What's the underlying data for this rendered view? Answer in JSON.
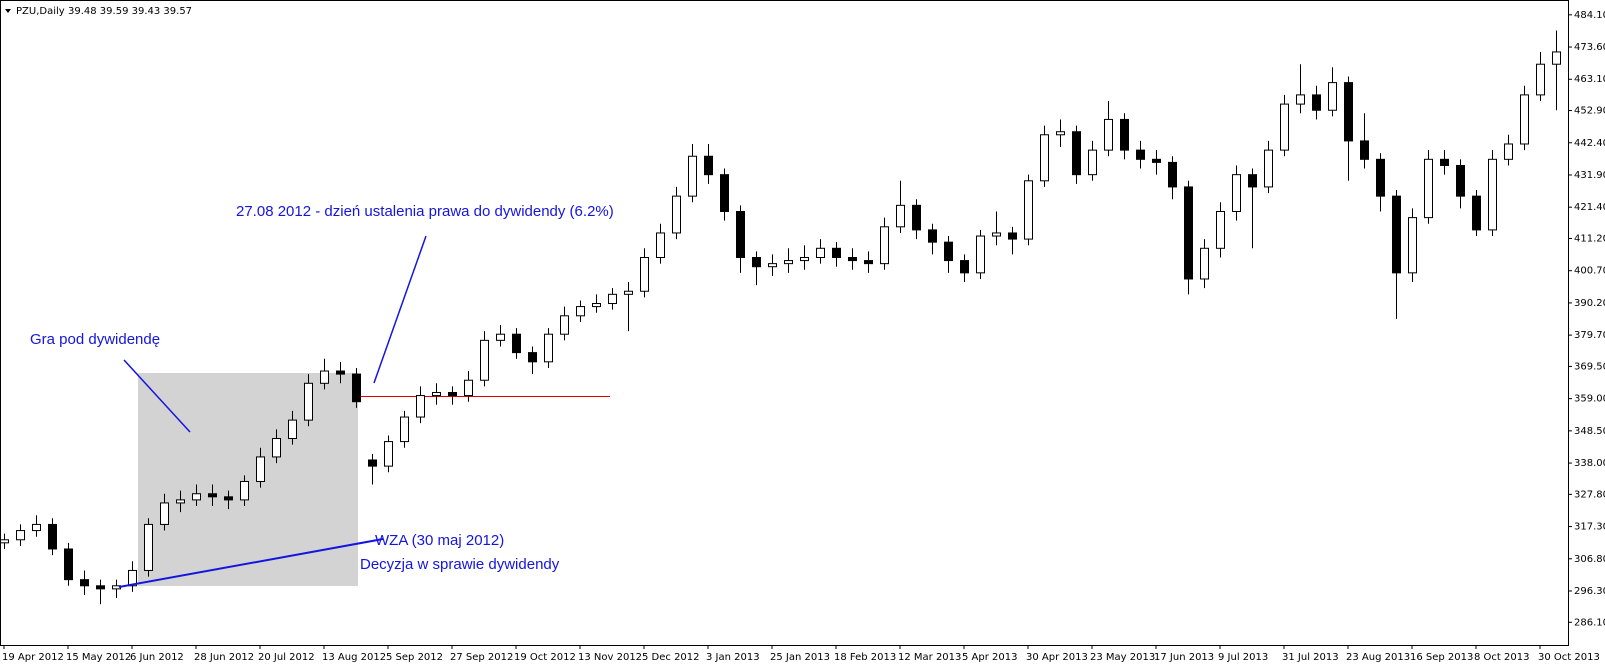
{
  "chart_data": {
    "type": "candlestick",
    "title": "PZU,Daily",
    "quote": "39.48 39.59 39.43 39.57",
    "annotations": [
      "27.08 2012 - dzień ustalenia prawa do dywidendy (6.2%)",
      "Gra pod dywidendę",
      "WZA (30 maj 2012)",
      "Decyzja w sprawie dywidendy"
    ],
    "categories": [
      "19 Apr 2012",
      null,
      null,
      null,
      "15 May 2012",
      null,
      null,
      null,
      "6 Jun 2012",
      null,
      null,
      null,
      "28 Jun 2012",
      null,
      null,
      null,
      "20 Jul 2012",
      null,
      null,
      null,
      "13 Aug 2012",
      null,
      null,
      null,
      "5 Sep 2012",
      null,
      null,
      null,
      "27 Sep 2012",
      null,
      null,
      null,
      "19 Oct 2012",
      null,
      null,
      null,
      "13 Nov 2012",
      null,
      null,
      null,
      "5 Dec 2012",
      null,
      null,
      null,
      "3 Jan 2013",
      null,
      null,
      null,
      "25 Jan 2013",
      null,
      null,
      null,
      "18 Feb 2013",
      null,
      null,
      null,
      "12 Mar 2013",
      null,
      null,
      null,
      "5 Apr 2013",
      null,
      null,
      null,
      "30 Apr 2013",
      null,
      null,
      null,
      "23 May 2013",
      null,
      null,
      null,
      "17 Jun 2013",
      null,
      null,
      null,
      "9 Jul 2013",
      null,
      null,
      null,
      "31 Jul 2013",
      null,
      null,
      null,
      "23 Aug 2013",
      null,
      null,
      null,
      "16 Sep 2013",
      null,
      null,
      null,
      "8 Oct 2013",
      null,
      null,
      null,
      "30 Oct 2013",
      null
    ],
    "open": [
      312,
      313,
      316,
      318,
      310,
      300,
      298,
      297,
      298,
      303,
      318,
      325,
      326,
      328,
      327,
      326,
      332,
      340,
      346,
      352,
      364,
      368,
      367,
      339,
      337,
      345,
      353,
      360,
      361,
      360,
      365,
      378,
      380,
      374,
      371,
      380,
      386,
      389,
      390,
      393,
      394,
      405,
      413,
      425,
      438,
      432,
      420,
      405,
      402,
      403,
      404,
      405,
      408,
      405,
      404,
      403,
      415,
      422,
      414,
      410,
      404,
      400,
      412,
      413,
      411,
      430,
      445,
      446,
      432,
      440,
      450,
      440,
      437,
      436,
      428,
      398,
      408,
      420,
      432,
      428,
      440,
      455,
      458,
      453,
      462,
      443,
      437,
      425,
      400,
      418,
      437,
      435,
      425,
      414,
      437,
      442,
      458,
      468
    ],
    "high": [
      315,
      318,
      321,
      320,
      312,
      303,
      300,
      300,
      306,
      320,
      328,
      329,
      331,
      331,
      329,
      334,
      343,
      349,
      355,
      367,
      372,
      371,
      369,
      341,
      347,
      355,
      363,
      364,
      363,
      368,
      381,
      383,
      382,
      376,
      382,
      389,
      391,
      393,
      395,
      397,
      408,
      416,
      428,
      442,
      442,
      434,
      422,
      407,
      406,
      408,
      409,
      411,
      410,
      408,
      407,
      418,
      430,
      424,
      416,
      412,
      406,
      414,
      420,
      415,
      432,
      448,
      450,
      448,
      443,
      456,
      452,
      443,
      440,
      438,
      430,
      411,
      423,
      435,
      434,
      443,
      458,
      468,
      461,
      467,
      464,
      452,
      439,
      427,
      421,
      440,
      440,
      437,
      427,
      440,
      445,
      461,
      472,
      479
    ],
    "low": [
      310,
      311,
      314,
      308,
      298,
      295,
      292,
      294,
      296,
      301,
      316,
      322,
      324,
      324,
      323,
      324,
      330,
      338,
      344,
      350,
      362,
      364,
      356,
      331,
      335,
      343,
      351,
      357,
      357,
      358,
      363,
      376,
      372,
      367,
      369,
      378,
      384,
      387,
      388,
      381,
      392,
      403,
      411,
      423,
      429,
      417,
      400,
      396,
      399,
      400,
      401,
      403,
      402,
      401,
      400,
      401,
      413,
      411,
      406,
      400,
      397,
      398,
      409,
      406,
      409,
      428,
      441,
      429,
      430,
      438,
      437,
      434,
      432,
      424,
      393,
      395,
      405,
      417,
      408,
      426,
      438,
      452,
      450,
      451,
      430,
      434,
      420,
      385,
      397,
      416,
      432,
      421,
      412,
      412,
      435,
      440,
      456,
      453
    ],
    "close": [
      313,
      316,
      318,
      310,
      300,
      298,
      297,
      298,
      303,
      318,
      325,
      326,
      328,
      327,
      326,
      332,
      340,
      346,
      352,
      364,
      368,
      367,
      358,
      337,
      345,
      353,
      360,
      361,
      360,
      365,
      378,
      380,
      374,
      371,
      380,
      386,
      389,
      390,
      393,
      394,
      405,
      413,
      425,
      438,
      432,
      420,
      405,
      402,
      403,
      404,
      405,
      408,
      405,
      404,
      403,
      415,
      422,
      414,
      410,
      404,
      400,
      412,
      413,
      411,
      430,
      445,
      446,
      432,
      440,
      450,
      440,
      437,
      436,
      428,
      398,
      408,
      420,
      432,
      428,
      440,
      455,
      458,
      453,
      462,
      443,
      437,
      425,
      400,
      418,
      437,
      435,
      425,
      414,
      437,
      442,
      458,
      468,
      472
    ],
    "up_color": "#ffffff",
    "down_color": "#000000",
    "ylim": [
      278.7,
      487.3
    ],
    "yticks": [
      {
        "value": 484.1,
        "label": "484.10"
      },
      {
        "value": 473.6,
        "label": "473.60"
      },
      {
        "value": 463.1,
        "label": "463.10"
      },
      {
        "value": 452.9,
        "label": "452.90"
      },
      {
        "value": 442.4,
        "label": "442.40"
      },
      {
        "value": 431.9,
        "label": "431.90"
      },
      {
        "value": 421.4,
        "label": "421.40"
      },
      {
        "value": 411.2,
        "label": "411.20"
      },
      {
        "value": 400.7,
        "label": "400.70"
      },
      {
        "value": 390.2,
        "label": "390.20"
      },
      {
        "value": 379.7,
        "label": "379.70"
      },
      {
        "value": 369.5,
        "label": "369.50"
      },
      {
        "value": 359,
        "label": "359.00"
      },
      {
        "value": 348.5,
        "label": "348.50"
      },
      {
        "value": 338,
        "label": "338.00"
      },
      {
        "value": 327.8,
        "label": "327.80"
      },
      {
        "value": 317.3,
        "label": "317.30"
      },
      {
        "value": 306.8,
        "label": "306.80"
      },
      {
        "value": 296.3,
        "label": "296.30"
      },
      {
        "value": 286.1,
        "label": "286.10"
      }
    ]
  }
}
